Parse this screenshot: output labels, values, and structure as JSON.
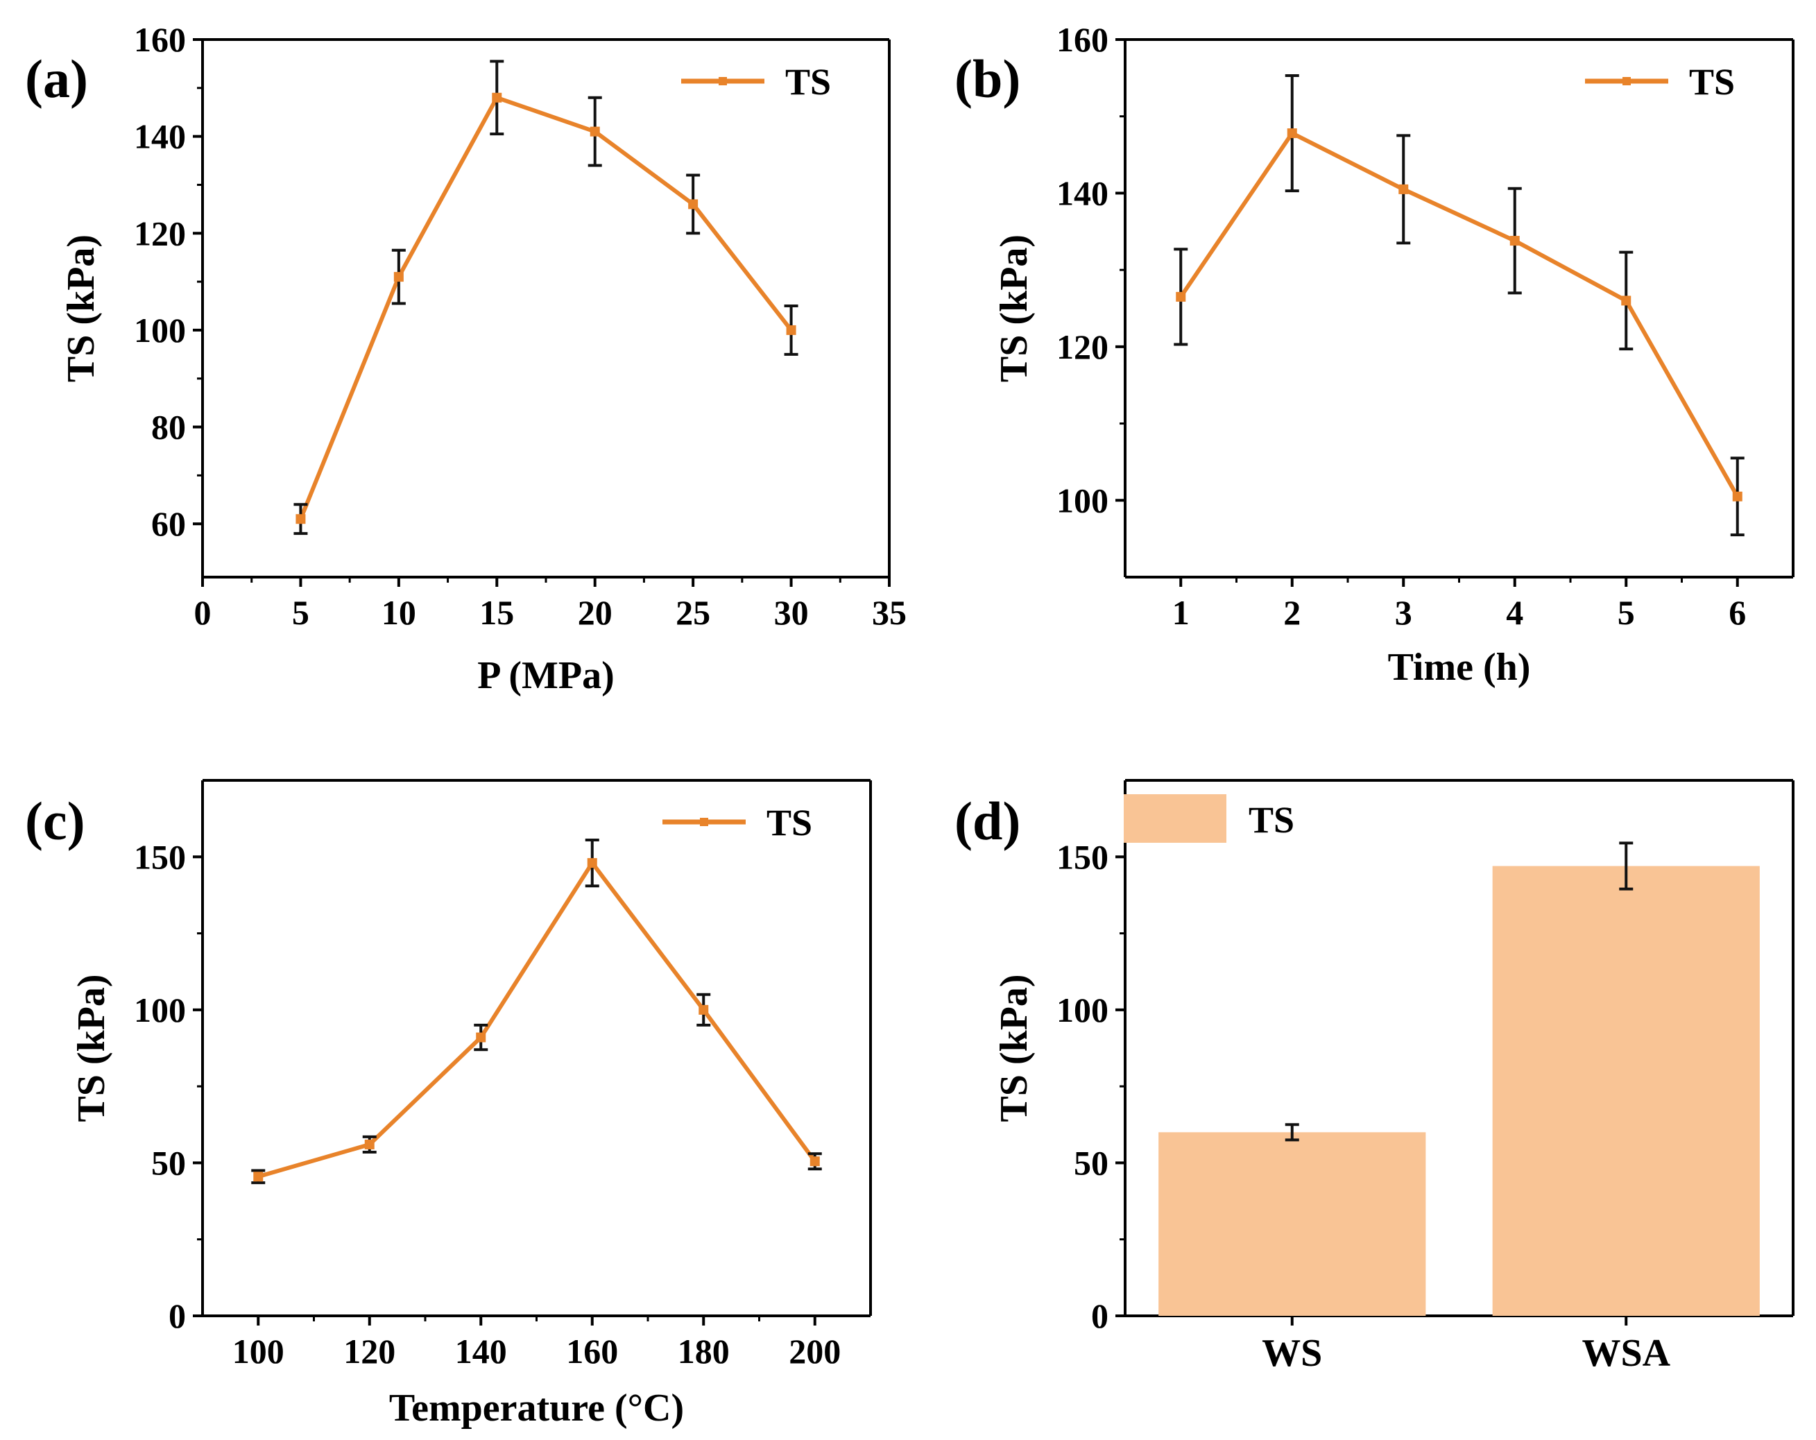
{
  "figure": {
    "accent_color": "#E8832A",
    "bar_color": "#F9C495",
    "axis_color": "#000000"
  },
  "chart_data": [
    {
      "panel": "(a)",
      "type": "line",
      "xlabel": "P (MPa)",
      "ylabel": "TS (kPa)",
      "xlim": [
        0,
        35
      ],
      "ylim": [
        49,
        160
      ],
      "xticks": [
        0,
        5,
        10,
        15,
        20,
        25,
        30,
        35
      ],
      "yticks": [
        60,
        80,
        100,
        120,
        140,
        160
      ],
      "legend": "TS",
      "legend_position": "top-right",
      "series": [
        {
          "name": "TS",
          "x": [
            5,
            10,
            15,
            20,
            25,
            30
          ],
          "y": [
            61,
            111,
            148,
            141,
            126,
            100
          ],
          "err": [
            3,
            5.5,
            7.5,
            7,
            6,
            5
          ]
        }
      ]
    },
    {
      "panel": "(b)",
      "type": "line",
      "xlabel": "Time (h)",
      "ylabel": "TS (kPa)",
      "xlim": [
        0.5,
        6.5
      ],
      "ylim": [
        90,
        160
      ],
      "xticks": [
        1,
        2,
        3,
        4,
        5,
        6
      ],
      "yticks": [
        100,
        120,
        140,
        160
      ],
      "legend": "TS",
      "legend_position": "top-right",
      "series": [
        {
          "name": "TS",
          "x": [
            1,
            2,
            3,
            4,
            5,
            6
          ],
          "y": [
            126.5,
            147.8,
            140.5,
            133.8,
            126,
            100.5
          ],
          "err": [
            6.2,
            7.5,
            7,
            6.8,
            6.3,
            5
          ]
        }
      ]
    },
    {
      "panel": "(c)",
      "type": "line",
      "xlabel": "Temperature (°C)",
      "ylabel": "TS (kPa)",
      "xlim": [
        90,
        210
      ],
      "ylim": [
        0,
        175
      ],
      "xticks": [
        100,
        120,
        140,
        160,
        180,
        200
      ],
      "yticks": [
        0,
        50,
        100,
        150
      ],
      "legend": "TS",
      "legend_position": "top-right",
      "series": [
        {
          "name": "TS",
          "x": [
            100,
            120,
            140,
            160,
            180,
            200
          ],
          "y": [
            45.5,
            56,
            91,
            148,
            100,
            50.5
          ],
          "err": [
            2,
            2.5,
            4,
            7.5,
            5,
            2.5
          ]
        }
      ]
    },
    {
      "panel": "(d)",
      "type": "bar",
      "xlabel": "",
      "ylabel": "TS (kPa)",
      "ylim": [
        0,
        175
      ],
      "yticks": [
        0,
        50,
        100,
        150
      ],
      "legend": "TS",
      "legend_position": "top-left",
      "categories": [
        "WS",
        "WSA"
      ],
      "values": [
        60,
        147
      ],
      "err": [
        2.5,
        7.5
      ]
    }
  ]
}
